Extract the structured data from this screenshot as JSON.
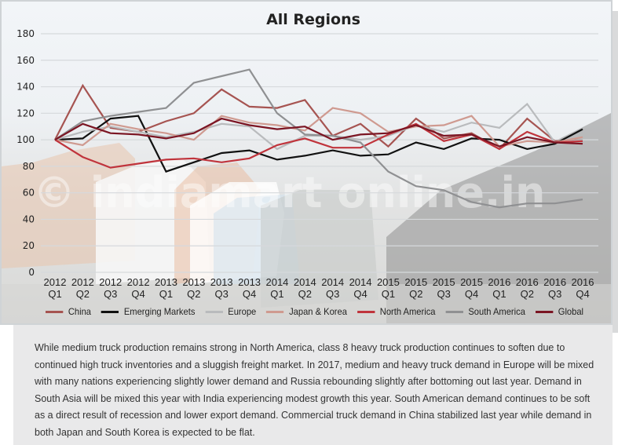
{
  "chart_data": {
    "type": "line",
    "title": "All Regions",
    "xlabel": "",
    "ylabel": "",
    "ylim": [
      0,
      180
    ],
    "yticks": [
      0,
      20,
      40,
      60,
      80,
      100,
      120,
      140,
      160,
      180
    ],
    "grid": true,
    "legend_position": "bottom",
    "categories": [
      {
        "year": "2012",
        "q": "Q1"
      },
      {
        "year": "2012",
        "q": "Q2"
      },
      {
        "year": "2012",
        "q": "Q3"
      },
      {
        "year": "2012",
        "q": "Q4"
      },
      {
        "year": "2013",
        "q": "Q1"
      },
      {
        "year": "2013",
        "q": "Q2"
      },
      {
        "year": "2013",
        "q": "Q3"
      },
      {
        "year": "2013",
        "q": "Q4"
      },
      {
        "year": "2014",
        "q": "Q1"
      },
      {
        "year": "2014",
        "q": "Q2"
      },
      {
        "year": "2014",
        "q": "Q3"
      },
      {
        "year": "2014",
        "q": "Q4"
      },
      {
        "year": "2015",
        "q": "Q1"
      },
      {
        "year": "2015",
        "q": "Q2"
      },
      {
        "year": "2015",
        "q": "Q3"
      },
      {
        "year": "2015",
        "q": "Q4"
      },
      {
        "year": "2016",
        "q": "Q1"
      },
      {
        "year": "2016",
        "q": "Q2"
      },
      {
        "year": "2016",
        "q": "Q3"
      },
      {
        "year": "2016",
        "q": "Q4"
      }
    ],
    "series": [
      {
        "name": "China",
        "color": "#a65451",
        "values": [
          100,
          141,
          109,
          106,
          114,
          120,
          138,
          125,
          124,
          130,
          103,
          112,
          95,
          116,
          101,
          105,
          93,
          116,
          99,
          100
        ]
      },
      {
        "name": "Emerging Markets",
        "color": "#111111",
        "values": [
          100,
          101,
          116,
          118,
          76,
          83,
          90,
          92,
          85,
          88,
          92,
          88,
          89,
          98,
          93,
          101,
          100,
          93,
          97,
          108
        ]
      },
      {
        "name": "Europe",
        "color": "#b9bbbd",
        "values": [
          100,
          106,
          110,
          106,
          102,
          106,
          112,
          110,
          93,
          103,
          103,
          100,
          103,
          111,
          106,
          113,
          109,
          127,
          98,
          100
        ]
      },
      {
        "name": "Japan & Korea",
        "color": "#cf9a90",
        "values": [
          100,
          96,
          112,
          108,
          105,
          100,
          118,
          113,
          111,
          107,
          124,
          120,
          106,
          110,
          111,
          118,
          95,
          99,
          98,
          102
        ]
      },
      {
        "name": "North America",
        "color": "#c0343c",
        "values": [
          100,
          87,
          79,
          82,
          85,
          86,
          83,
          86,
          96,
          101,
          94,
          94,
          104,
          112,
          99,
          104,
          93,
          106,
          98,
          99
        ]
      },
      {
        "name": "South America",
        "color": "#8f9092",
        "values": [
          100,
          114,
          118,
          121,
          124,
          143,
          148,
          153,
          120,
          104,
          103,
          98,
          76,
          65,
          62,
          53,
          49,
          52,
          52,
          55
        ]
      },
      {
        "name": "Global",
        "color": "#7b1523",
        "values": [
          100,
          112,
          105,
          104,
          101,
          105,
          116,
          111,
          108,
          110,
          100,
          104,
          105,
          111,
          103,
          104,
          95,
          102,
          98,
          97
        ]
      }
    ]
  },
  "caption": {
    "text": "While medium truck production remains strong in North America, class 8 heavy truck production continues to soften due to continued high truck inventories and a sluggish freight market. In 2017, medium and heavy truck demand in Europe will be mixed with many nations experiencing slightly lower demand and Russia rebounding slightly after bottoming out last year. Demand in South Asia will be mixed this year with India experiencing modest growth this year. South American demand continues to be soft as a direct result of recession and lower export demand. Commercial truck demand in China stabilized last year while demand in both Japan and South Korea is expected to be flat."
  }
}
